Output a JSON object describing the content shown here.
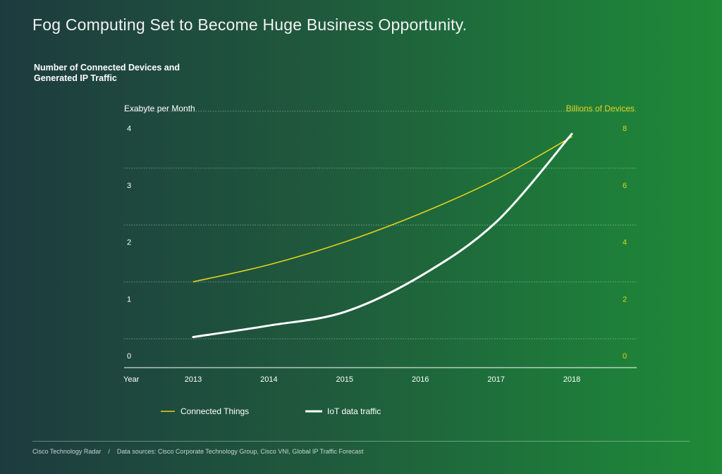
{
  "title": "Fog Computing Set to Become Huge Business Opportunity.",
  "subtitle": "Number of Connected Devices and\nGenerated IP Traffic",
  "footer": {
    "source_left": "Cisco Technology Radar",
    "separator": "/",
    "source_right": "Data sources: Cisco Corporate Technology Group, Cisco VNI, Global IP Traffic Forecast"
  },
  "colors": {
    "connected_things": "#e3d21c",
    "iot_traffic": "#ffffff"
  },
  "chart_data": {
    "type": "line",
    "xlabel": "Year",
    "ylabel": "Exabyte per Month",
    "y2label": "Billions of Devices",
    "x": [
      2013,
      2014,
      2015,
      2016,
      2017,
      2018
    ],
    "ylim": [
      0,
      4
    ],
    "y2lim": [
      0,
      8
    ],
    "yticks": [
      0,
      1,
      2,
      3,
      4
    ],
    "y2ticks": [
      0,
      2,
      4,
      6,
      8
    ],
    "grid": true,
    "legend": "bottom",
    "series": [
      {
        "name": "Connected Things",
        "axis": "right",
        "x": [
          2013,
          2014,
          2015,
          2016,
          2017,
          2018
        ],
        "values": [
          2.3,
          2.9,
          3.7,
          4.7,
          5.9,
          7.4
        ]
      },
      {
        "name": "IoT data traffic",
        "axis": "left",
        "x": [
          2013,
          2014,
          2015,
          2016,
          2017,
          2018
        ],
        "values": [
          0.18,
          0.38,
          0.62,
          1.25,
          2.2,
          3.75
        ]
      }
    ]
  }
}
